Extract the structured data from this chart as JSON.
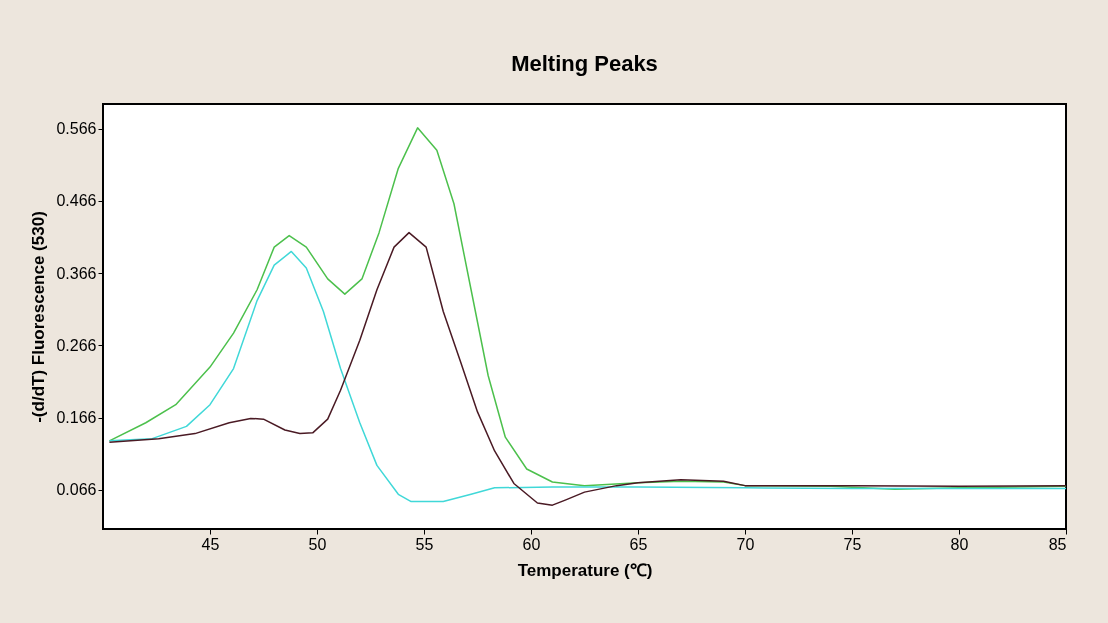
{
  "chart_data": {
    "type": "line",
    "title": "Melting Peaks",
    "xlabel": "Temperature (℃)",
    "ylabel": "-(d/dT) Fluorescence (530)",
    "xlim": [
      40,
      85
    ],
    "xticks": [
      45,
      50,
      55,
      60,
      65,
      70,
      75,
      80,
      85
    ],
    "ylim": [
      0.012,
      0.6
    ],
    "yticks": [
      0.066,
      0.166,
      0.266,
      0.366,
      0.466,
      0.566
    ],
    "grid": false,
    "legend": false,
    "line_style": "solid",
    "series": [
      {
        "color": "#4cc04c",
        "x": [
          40.3,
          42.0,
          43.4,
          45,
          46.1,
          47.2,
          48.0,
          48.7,
          49.5,
          50.5,
          51.3,
          52.1,
          52.9,
          53.8,
          54.7,
          55.6,
          56.4,
          57.2,
          58.0,
          58.8,
          59.8,
          61.0,
          62.5,
          65,
          67,
          69,
          70,
          74,
          77,
          80,
          85
        ],
        "values": [
          0.134,
          0.159,
          0.184,
          0.236,
          0.283,
          0.343,
          0.402,
          0.418,
          0.402,
          0.358,
          0.337,
          0.358,
          0.422,
          0.511,
          0.567,
          0.536,
          0.462,
          0.343,
          0.224,
          0.139,
          0.095,
          0.077,
          0.072,
          0.076,
          0.078,
          0.077,
          0.072,
          0.071,
          0.067,
          0.069,
          0.071
        ]
      },
      {
        "color": "#40d8d8",
        "x": [
          40.3,
          42.3,
          43.9,
          45,
          46.1,
          47.2,
          48.0,
          48.8,
          49.5,
          50.3,
          51.1,
          52.0,
          52.8,
          53.8,
          54.4,
          55.9,
          57.2,
          58.3,
          61.0,
          65,
          70,
          75,
          80,
          85
        ],
        "values": [
          0.134,
          0.137,
          0.154,
          0.184,
          0.234,
          0.328,
          0.377,
          0.396,
          0.373,
          0.313,
          0.234,
          0.159,
          0.1,
          0.06,
          0.05,
          0.05,
          0.06,
          0.069,
          0.07,
          0.07,
          0.069,
          0.068,
          0.068,
          0.068
        ]
      },
      {
        "color": "#4a1a24",
        "x": [
          40.3,
          42.6,
          44.3,
          45.9,
          46.9,
          47.5,
          48.5,
          49.2,
          49.8,
          50.5,
          51.1,
          52.0,
          52.8,
          53.6,
          54.3,
          55.1,
          55.9,
          56.7,
          57.5,
          58.3,
          59.2,
          60.3,
          61.0,
          61.6,
          62.5,
          64,
          65,
          67,
          69,
          70,
          75,
          80,
          85
        ],
        "values": [
          0.132,
          0.137,
          0.144,
          0.159,
          0.165,
          0.164,
          0.149,
          0.144,
          0.145,
          0.164,
          0.204,
          0.273,
          0.343,
          0.402,
          0.422,
          0.402,
          0.313,
          0.244,
          0.174,
          0.12,
          0.075,
          0.048,
          0.045,
          0.052,
          0.063,
          0.072,
          0.076,
          0.08,
          0.078,
          0.072,
          0.072,
          0.071,
          0.072
        ]
      }
    ]
  }
}
